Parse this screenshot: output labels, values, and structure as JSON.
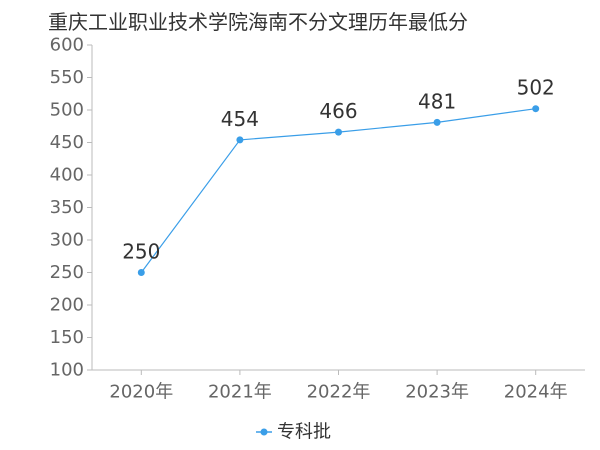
{
  "chart_data": {
    "type": "line",
    "title": "重庆工业职业技术学院海南不分文理历年最低分",
    "categories": [
      "2020年",
      "2021年",
      "2022年",
      "2023年",
      "2024年"
    ],
    "series": [
      {
        "name": "专科批",
        "values": [
          250,
          454,
          466,
          481,
          502
        ]
      }
    ],
    "ylim": [
      100,
      600
    ],
    "yticks": [
      100,
      150,
      200,
      250,
      300,
      350,
      400,
      450,
      500,
      550,
      600
    ],
    "legend": "bottom-center",
    "grid": false,
    "colors": {
      "series": "#3a9ee8",
      "axis": "#bbbbbb",
      "text": "#666666"
    }
  }
}
